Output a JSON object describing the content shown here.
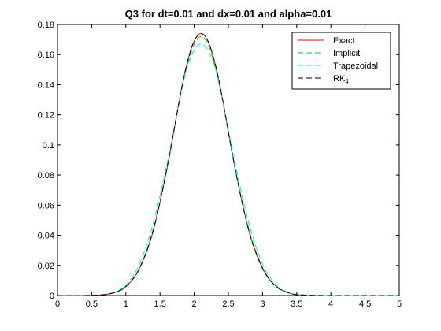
{
  "chart_data": {
    "type": "line",
    "title": "Q3 for dt=0.01 and dx=0.01 and alpha=0.01",
    "xlabel": "",
    "ylabel": "",
    "xlim": [
      0,
      5
    ],
    "ylim": [
      0,
      0.18
    ],
    "xticks": [
      0,
      0.5,
      1,
      1.5,
      2,
      2.5,
      3,
      3.5,
      4,
      4.5,
      5
    ],
    "xtick_labels": [
      "0",
      "0.5",
      "1",
      "1.5",
      "2",
      "2.5",
      "3",
      "3.5",
      "4",
      "4.5",
      "5"
    ],
    "yticks": [
      0,
      0.02,
      0.04,
      0.06,
      0.08,
      0.1,
      0.12,
      0.14,
      0.16,
      0.18
    ],
    "ytick_labels": [
      "0",
      "0.02",
      "0.04",
      "0.06",
      "0.08",
      "0.1",
      "0.12",
      "0.14",
      "0.16",
      "0.18"
    ],
    "grid": false,
    "legend_position": "top-right",
    "x": [
      0,
      0.5,
      0.8,
      1.0,
      1.2,
      1.4,
      1.6,
      1.8,
      1.9,
      2.0,
      2.1,
      2.2,
      2.3,
      2.4,
      2.6,
      2.8,
      3.0,
      3.2,
      3.4,
      3.6,
      4.0,
      4.5,
      5.0
    ],
    "series": [
      {
        "name": "Exact",
        "color": "#ff0000",
        "dash": "solid",
        "values": [
          0,
          0.0001,
          0.0015,
          0.006,
          0.018,
          0.043,
          0.084,
          0.134,
          0.155,
          0.169,
          0.174,
          0.169,
          0.155,
          0.134,
          0.084,
          0.043,
          0.018,
          0.006,
          0.0015,
          0.0003,
          0,
          0,
          0
        ]
      },
      {
        "name": "Implicit",
        "color": "#00cc00",
        "dash": "dashed",
        "values": [
          0,
          0.0001,
          0.0016,
          0.0062,
          0.0185,
          0.044,
          0.084,
          0.133,
          0.153,
          0.167,
          0.172,
          0.167,
          0.153,
          0.133,
          0.084,
          0.044,
          0.0185,
          0.0062,
          0.0016,
          0.0003,
          0,
          0,
          0
        ]
      },
      {
        "name": "Trapezoidal",
        "color": "#00e5e5",
        "dash": "dashed",
        "values": [
          0,
          0.0001,
          0.0018,
          0.007,
          0.021,
          0.048,
          0.087,
          0.133,
          0.152,
          0.163,
          0.167,
          0.163,
          0.152,
          0.133,
          0.087,
          0.048,
          0.021,
          0.007,
          0.0018,
          0.0004,
          0,
          0,
          0
        ]
      },
      {
        "name": "RK",
        "name_subscript": "4",
        "color": "#000000",
        "dash": "dashed",
        "values": [
          0,
          0.0001,
          0.0015,
          0.006,
          0.018,
          0.043,
          0.084,
          0.134,
          0.155,
          0.169,
          0.174,
          0.169,
          0.155,
          0.134,
          0.084,
          0.043,
          0.018,
          0.006,
          0.0015,
          0.0003,
          0,
          0,
          0
        ]
      }
    ]
  }
}
